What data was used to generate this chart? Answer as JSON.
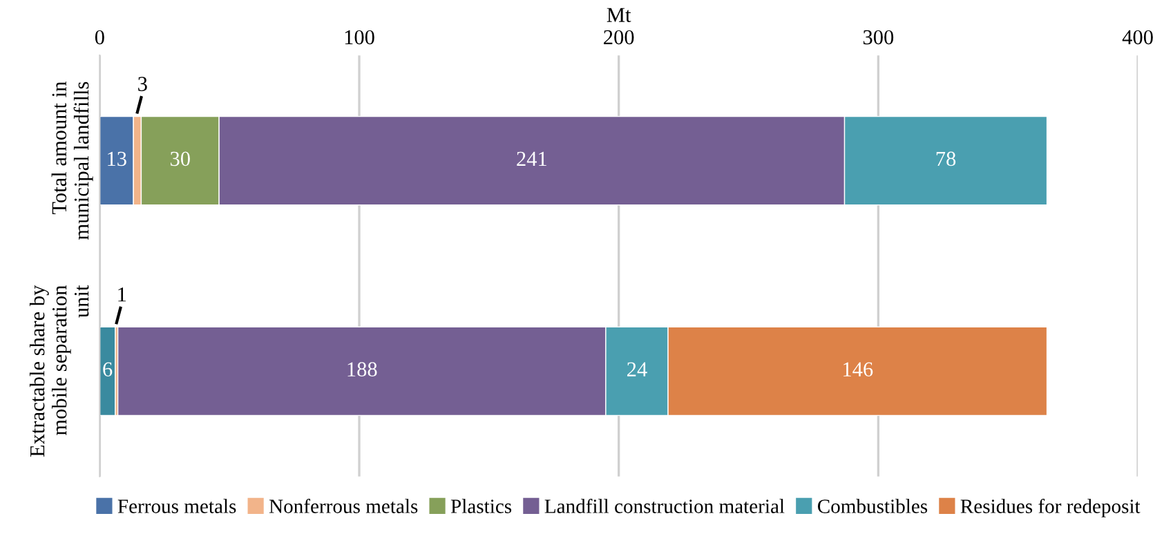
{
  "chart_data": {
    "type": "bar",
    "orientation": "horizontal",
    "stacked": true,
    "xlabel": "Mt",
    "categories": [
      "Total amount in\nmunicipal landfills",
      "Extractable share by\nmobile separation\nunit"
    ],
    "series": [
      {
        "name": "Ferrous metals",
        "color": "#4a72a8",
        "colors": [
          "#4a72a8",
          "#3a8a9f"
        ],
        "values": [
          13,
          6
        ]
      },
      {
        "name": "Nonferrous metals",
        "color": "#f2b48a",
        "values": [
          3,
          1
        ]
      },
      {
        "name": "Plastics",
        "color": "#86a05a",
        "values": [
          30,
          null
        ]
      },
      {
        "name": "Landfill construction material",
        "color": "#745f93",
        "values": [
          241,
          188
        ]
      },
      {
        "name": "Combustibles",
        "color": "#4a9fb0",
        "values": [
          78,
          24
        ]
      },
      {
        "name": "Residues for redeposit",
        "color": "#dd8248",
        "values": [
          null,
          146
        ]
      }
    ],
    "xlim": [
      0,
      400
    ],
    "xticks": [
      0,
      100,
      200,
      300,
      400
    ],
    "grid": "x",
    "legend": "bottom",
    "data_labels": true
  }
}
